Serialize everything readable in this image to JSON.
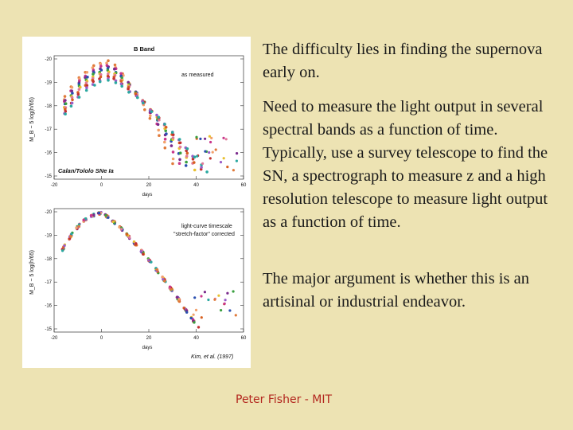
{
  "slide": {
    "paragraphs": [
      "The difficulty lies in finding the supernova early on.",
      "Need to measure the light output in several spectral bands as a function of time.  Typically, use a survey telescope to find the SN, a spectrograph to measure z and a high resolution telescope to measure light output as a function of time.",
      "The major argument is whether this is an artisinal or industrial endeavor."
    ],
    "footer": "Peter Fisher - MIT"
  },
  "figure": {
    "title": "B Band",
    "top_panel": {
      "annotation": "as measured",
      "caption": "Calan/Tololo SNe Ia",
      "ylabel": "M_B − 5 log(h/65)",
      "xlabel": "days"
    },
    "bottom_panel": {
      "annotation_line1": "light-curve timescale",
      "annotation_line2": "\"stretch-factor\" corrected",
      "ylabel": "M_B − 5 log(h/65)",
      "xlabel": "days",
      "credit": "Kim, et al. (1997)"
    },
    "x_ticks": [
      "-20",
      "0",
      "20",
      "40",
      "60"
    ],
    "y_ticks": [
      "-20",
      "-19",
      "-18",
      "-17",
      "-16",
      "-15"
    ]
  },
  "colors": {
    "background": "#ede3b3",
    "footer": "#b3261e",
    "series": [
      "#e07a3a",
      "#f2a06a",
      "#c9378c",
      "#7a2a8c",
      "#2a4fb0",
      "#3aa040",
      "#e8c030",
      "#e07a9a",
      "#d86020",
      "#c23030",
      "#9a5cc8",
      "#2aa8a0"
    ]
  }
}
